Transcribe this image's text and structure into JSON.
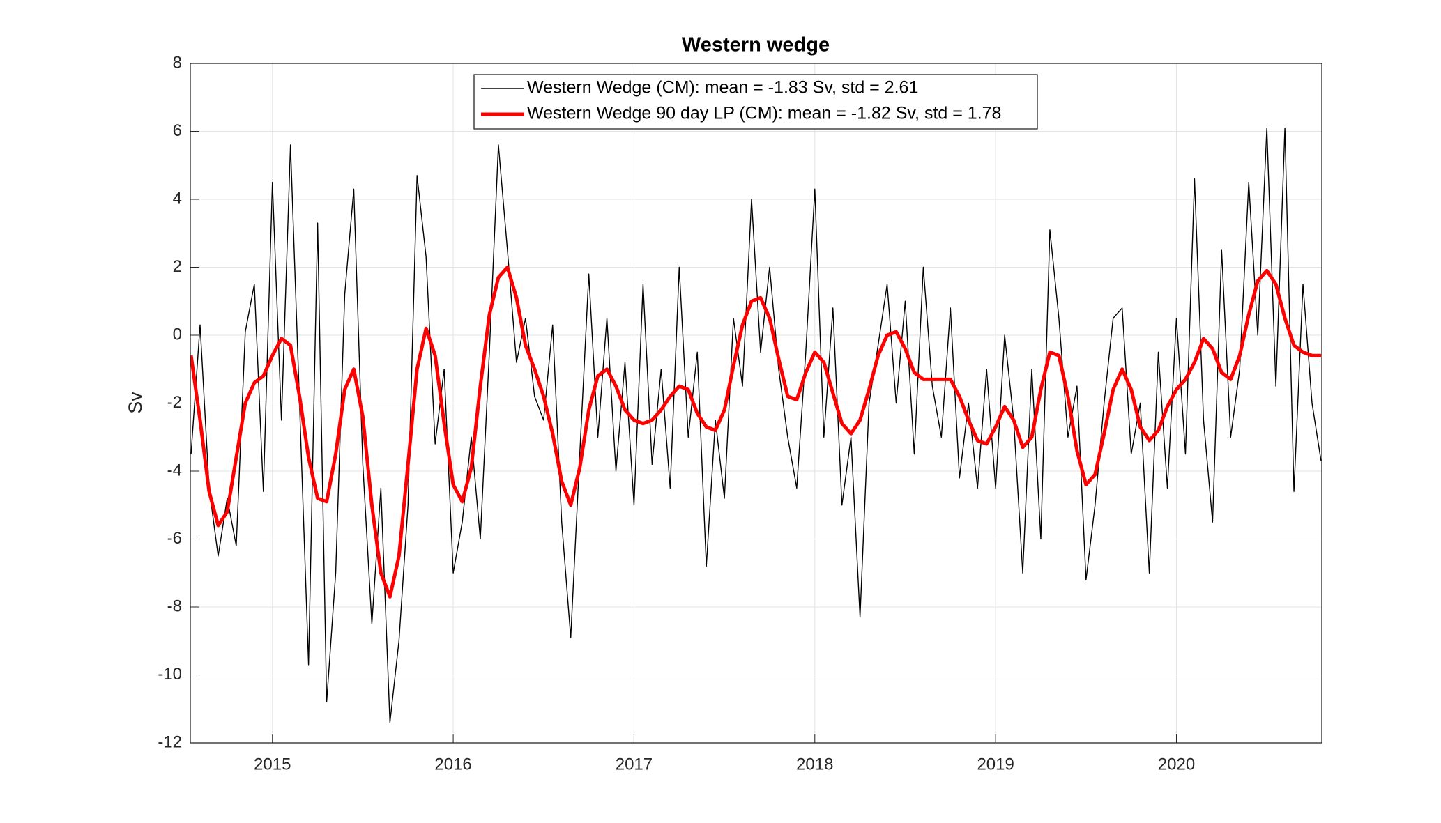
{
  "chart_data": {
    "type": "line",
    "title": "Western wedge",
    "y_label": "Sv",
    "x": [
      2014.55,
      2014.6,
      2014.65,
      2014.7,
      2014.75,
      2014.8,
      2014.85,
      2014.9,
      2014.95,
      2015.0,
      2015.05,
      2015.1,
      2015.15,
      2015.2,
      2015.25,
      2015.3,
      2015.35,
      2015.4,
      2015.45,
      2015.5,
      2015.55,
      2015.6,
      2015.65,
      2015.7,
      2015.75,
      2015.8,
      2015.85,
      2015.9,
      2015.95,
      2016.0,
      2016.05,
      2016.1,
      2016.15,
      2016.2,
      2016.25,
      2016.3,
      2016.35,
      2016.4,
      2016.45,
      2016.5,
      2016.55,
      2016.6,
      2016.65,
      2016.7,
      2016.75,
      2016.8,
      2016.85,
      2016.9,
      2016.95,
      2017.0,
      2017.05,
      2017.1,
      2017.15,
      2017.2,
      2017.25,
      2017.3,
      2017.35,
      2017.4,
      2017.45,
      2017.5,
      2017.55,
      2017.6,
      2017.65,
      2017.7,
      2017.75,
      2017.8,
      2017.85,
      2017.9,
      2017.95,
      2018.0,
      2018.05,
      2018.1,
      2018.15,
      2018.2,
      2018.25,
      2018.3,
      2018.35,
      2018.4,
      2018.45,
      2018.5,
      2018.55,
      2018.6,
      2018.65,
      2018.7,
      2018.75,
      2018.8,
      2018.85,
      2018.9,
      2018.95,
      2019.0,
      2019.05,
      2019.1,
      2019.15,
      2019.2,
      2019.25,
      2019.3,
      2019.35,
      2019.4,
      2019.45,
      2019.5,
      2019.55,
      2019.6,
      2019.65,
      2019.7,
      2019.75,
      2019.8,
      2019.85,
      2019.9,
      2019.95,
      2020.0,
      2020.05,
      2020.1,
      2020.15,
      2020.2,
      2020.25,
      2020.3,
      2020.35,
      2020.4,
      2020.45,
      2020.5,
      2020.55,
      2020.6,
      2020.65,
      2020.7,
      2020.75,
      2020.8
    ],
    "series": [
      {
        "name": "Western Wedge (CM): mean = -1.83 Sv, std = 2.61",
        "color": "#000000",
        "width": 1.4,
        "values": [
          -3.5,
          0.3,
          -4.5,
          -6.5,
          -4.8,
          -6.2,
          0.1,
          1.5,
          -4.6,
          4.5,
          -2.5,
          5.6,
          -2.0,
          -9.7,
          3.3,
          -10.8,
          -7.0,
          1.2,
          4.3,
          -3.8,
          -8.5,
          -4.5,
          -11.4,
          -9.0,
          -5.0,
          4.7,
          2.3,
          -3.2,
          -1.0,
          -7.0,
          -5.5,
          -3.0,
          -6.0,
          -0.5,
          5.6,
          2.5,
          -0.8,
          0.5,
          -1.8,
          -2.5,
          0.3,
          -5.5,
          -8.9,
          -3.5,
          1.8,
          -3.0,
          0.5,
          -4.0,
          -0.8,
          -5.0,
          1.5,
          -3.8,
          -1.0,
          -4.5,
          2.0,
          -3.0,
          -0.5,
          -6.8,
          -2.5,
          -4.8,
          0.5,
          -1.5,
          4.0,
          -0.5,
          2.0,
          -1.0,
          -3.0,
          -4.5,
          -0.5,
          4.3,
          -3.0,
          0.8,
          -5.0,
          -3.0,
          -8.3,
          -2.0,
          -0.3,
          1.5,
          -2.0,
          1.0,
          -3.5,
          2.0,
          -1.5,
          -3.0,
          0.8,
          -4.2,
          -2.0,
          -4.5,
          -1.0,
          -4.5,
          0.0,
          -2.5,
          -7.0,
          -1.0,
          -6.0,
          3.1,
          0.5,
          -3.0,
          -1.5,
          -7.2,
          -5.0,
          -2.0,
          0.5,
          0.8,
          -3.5,
          -2.0,
          -7.0,
          -0.5,
          -4.5,
          0.5,
          -3.5,
          4.6,
          -2.5,
          -5.5,
          2.5,
          -3.0,
          -1.0,
          4.5,
          0.0,
          6.1,
          -1.5,
          6.1,
          -4.6,
          1.5,
          -2.0,
          -3.7
        ]
      },
      {
        "name": "Western Wedge 90 day LP (CM): mean = -1.82 Sv, std = 1.78",
        "color": "#ff0000",
        "width": 5,
        "values": [
          -0.6,
          -2.5,
          -4.6,
          -5.6,
          -5.2,
          -3.6,
          -2.0,
          -1.4,
          -1.2,
          -0.6,
          -0.1,
          -0.3,
          -1.8,
          -3.6,
          -4.8,
          -4.9,
          -3.5,
          -1.6,
          -1.0,
          -2.4,
          -5.0,
          -7.0,
          -7.7,
          -6.5,
          -3.8,
          -1.0,
          0.2,
          -0.6,
          -2.6,
          -4.4,
          -4.9,
          -3.9,
          -1.5,
          0.6,
          1.7,
          2.0,
          1.1,
          -0.3,
          -1.0,
          -1.8,
          -2.9,
          -4.3,
          -5.0,
          -3.9,
          -2.2,
          -1.2,
          -1.0,
          -1.5,
          -2.2,
          -2.5,
          -2.6,
          -2.5,
          -2.2,
          -1.8,
          -1.5,
          -1.6,
          -2.3,
          -2.7,
          -2.8,
          -2.2,
          -0.9,
          0.3,
          1.0,
          1.1,
          0.5,
          -0.7,
          -1.8,
          -1.9,
          -1.1,
          -0.5,
          -0.8,
          -1.7,
          -2.6,
          -2.9,
          -2.5,
          -1.6,
          -0.6,
          0.0,
          0.1,
          -0.4,
          -1.1,
          -1.3,
          -1.3,
          -1.3,
          -1.3,
          -1.8,
          -2.5,
          -3.1,
          -3.2,
          -2.7,
          -2.1,
          -2.5,
          -3.3,
          -3.0,
          -1.6,
          -0.5,
          -0.6,
          -1.8,
          -3.4,
          -4.4,
          -4.1,
          -2.9,
          -1.6,
          -1.0,
          -1.6,
          -2.7,
          -3.1,
          -2.8,
          -2.1,
          -1.6,
          -1.3,
          -0.8,
          -0.1,
          -0.4,
          -1.1,
          -1.3,
          -0.6,
          0.6,
          1.6,
          1.9,
          1.5,
          0.5,
          -0.3,
          -0.5,
          -0.6,
          -0.6
        ]
      }
    ],
    "xlim": [
      2014.546,
      2020.804
    ],
    "xticks": [
      2015,
      2016,
      2017,
      2018,
      2019,
      2020
    ],
    "ylim": [
      -12,
      8
    ],
    "yticks": [
      -12,
      -10,
      -8,
      -6,
      -4,
      -2,
      0,
      2,
      4,
      6,
      8
    ],
    "grid": true,
    "legend": "top"
  }
}
